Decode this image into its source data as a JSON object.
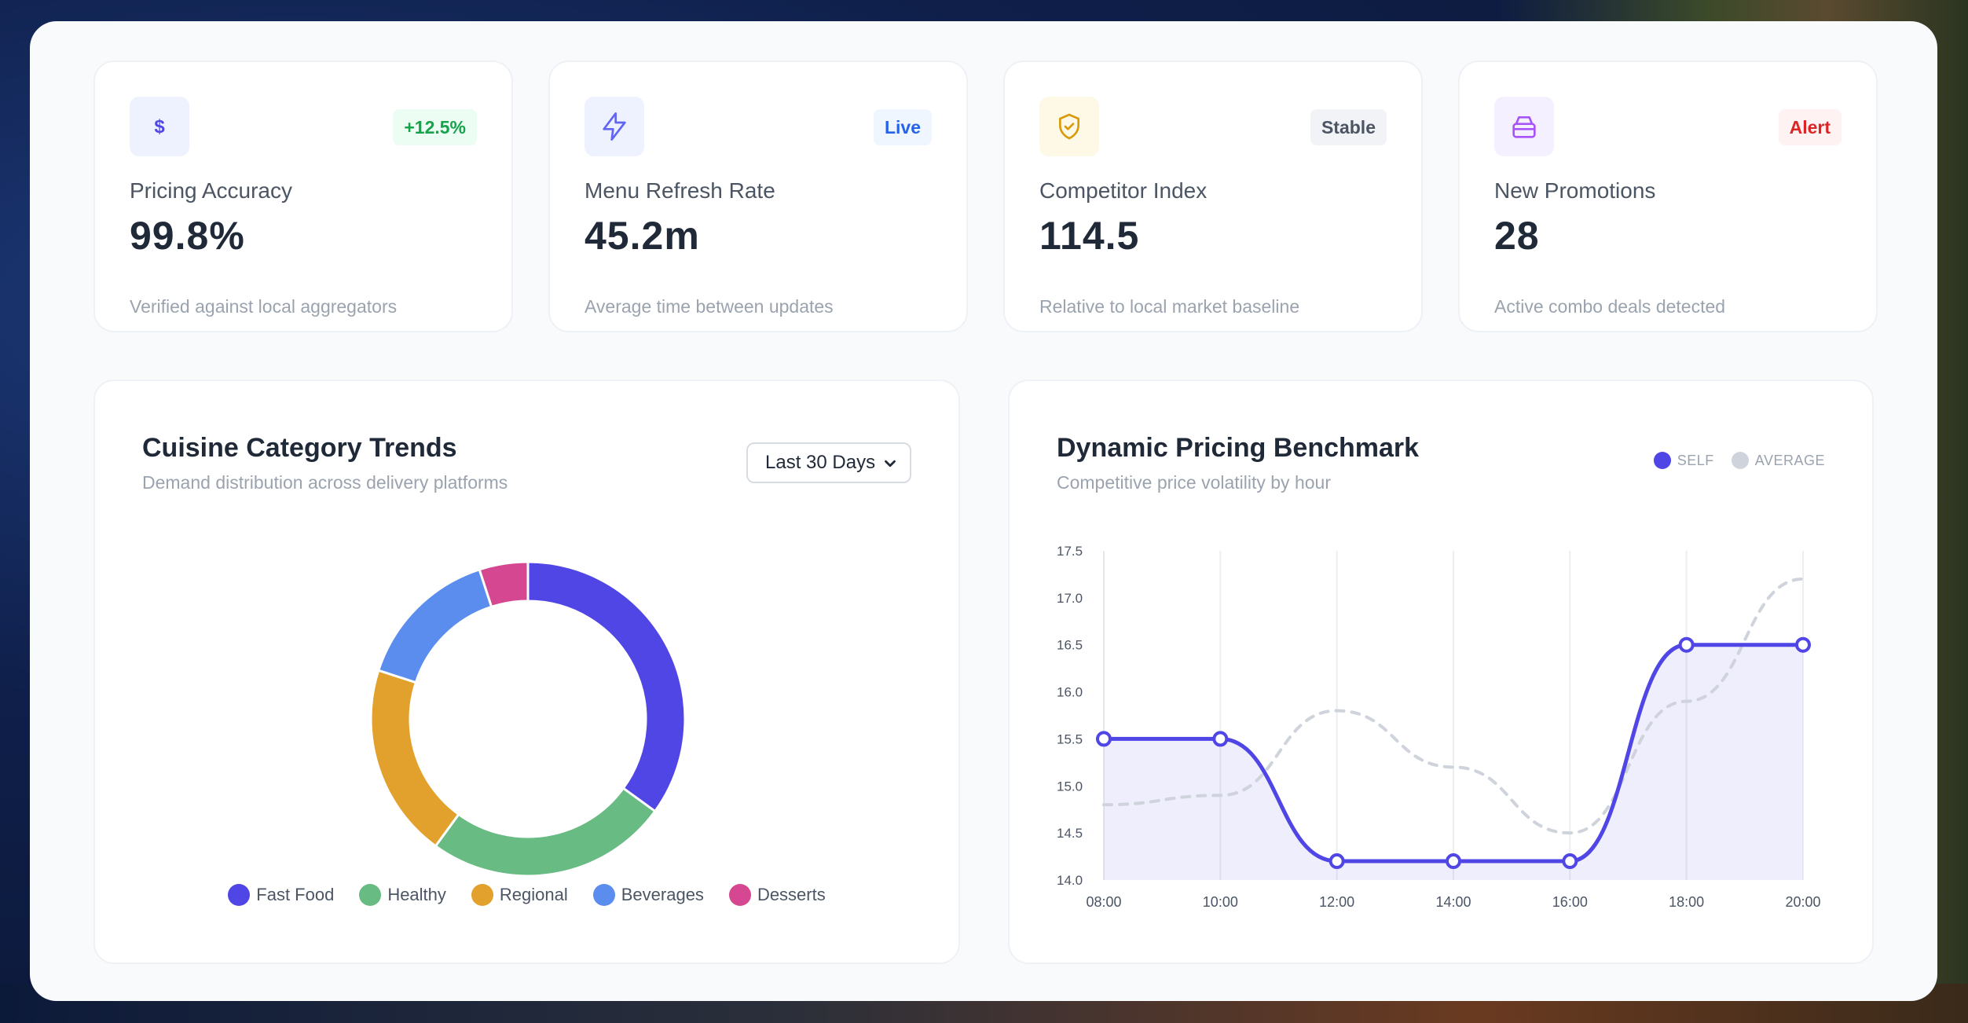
{
  "stats": [
    {
      "icon": "dollar-icon",
      "badge": "+12.5%",
      "badge_color": "#16a34a",
      "badge_bg": "#ecfdf3",
      "icon_bg": "#eef2ff",
      "icon_color": "#4f46e5",
      "label": "Pricing Accuracy",
      "value": "99.8%",
      "desc": "Verified against local aggregators"
    },
    {
      "icon": "lightning-icon",
      "badge": "Live",
      "badge_color": "#2563eb",
      "badge_bg": "#eff6ff",
      "icon_bg": "#eef2ff",
      "icon_color": "#6366f1",
      "label": "Menu Refresh Rate",
      "value": "45.2m",
      "desc": "Average time between updates"
    },
    {
      "icon": "shield-check-icon",
      "badge": "Stable",
      "badge_color": "#4b5563",
      "badge_bg": "#f1f3f6",
      "icon_bg": "#fef9e7",
      "icon_color": "#d99a0b",
      "label": "Competitor Index",
      "value": "114.5",
      "desc": "Relative to local market baseline"
    },
    {
      "icon": "archive-box-icon",
      "badge": "Alert",
      "badge_color": "#dc2626",
      "badge_bg": "#fef2f2",
      "icon_bg": "#f5f0ff",
      "icon_color": "#a855f7",
      "label": "New Promotions",
      "value": "28",
      "desc": "Active combo deals detected"
    }
  ],
  "donut": {
    "title": "Cuisine Category Trends",
    "subtitle": "Demand distribution across delivery platforms",
    "range_select": "Last 30 Days",
    "chart_data": {
      "type": "pie",
      "categories": [
        "Fast Food",
        "Healthy",
        "Regional",
        "Beverages",
        "Desserts"
      ],
      "values": [
        35,
        25,
        20,
        15,
        5
      ],
      "colors": [
        "#4f46e5",
        "#67bb83",
        "#e2a12c",
        "#5b8def",
        "#d64791"
      ]
    }
  },
  "line": {
    "title": "Dynamic Pricing Benchmark",
    "subtitle": "Competitive price volatility by hour",
    "legend_self": "SELF",
    "legend_avg": "AVERAGE",
    "self_color": "#4f46e5",
    "avg_color": "#cfd3dc",
    "chart_data": {
      "type": "line",
      "x": [
        "08:00",
        "10:00",
        "12:00",
        "14:00",
        "16:00",
        "18:00",
        "20:00"
      ],
      "series": [
        {
          "name": "SELF",
          "values": [
            15.5,
            15.5,
            14.2,
            14.2,
            14.2,
            16.5,
            16.5
          ]
        },
        {
          "name": "AVERAGE",
          "values": [
            14.8,
            14.9,
            15.8,
            15.2,
            14.5,
            15.9,
            17.2
          ]
        }
      ],
      "ylim": [
        14.0,
        17.5
      ],
      "yticks": [
        "14.0",
        "14.5",
        "15.0",
        "15.5",
        "16.0",
        "16.5",
        "17.0",
        "17.5"
      ],
      "grid": "vertical"
    }
  }
}
